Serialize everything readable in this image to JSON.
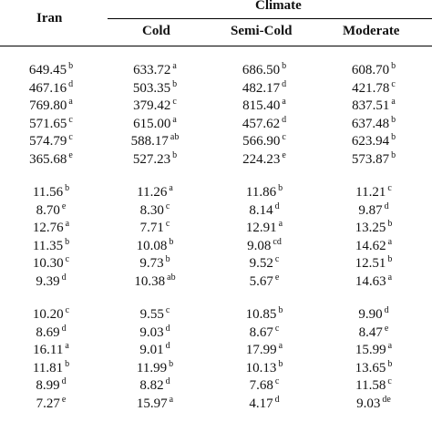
{
  "header": {
    "iran": "Iran",
    "climate": "Climate",
    "cold": "Cold",
    "semi_cold": "Semi-Cold",
    "moderate": "Moderate"
  },
  "groups": [
    {
      "rows": [
        [
          [
            "649.45",
            "b"
          ],
          [
            "633.72",
            "a"
          ],
          [
            "686.50",
            "b"
          ],
          [
            "608.70",
            "b"
          ]
        ],
        [
          [
            "467.16",
            "d"
          ],
          [
            "503.35",
            "b"
          ],
          [
            "482.17",
            "d"
          ],
          [
            "421.78",
            "c"
          ]
        ],
        [
          [
            "769.80",
            "a"
          ],
          [
            "379.42",
            "c"
          ],
          [
            "815.40",
            "a"
          ],
          [
            "837.51",
            "a"
          ]
        ],
        [
          [
            "571.65",
            "c"
          ],
          [
            "615.00",
            "a"
          ],
          [
            "457.62",
            "d"
          ],
          [
            "637.48",
            "b"
          ]
        ],
        [
          [
            "574.79",
            "c"
          ],
          [
            "588.17",
            "ab"
          ],
          [
            "566.90",
            "c"
          ],
          [
            "623.94",
            "b"
          ]
        ],
        [
          [
            "365.68",
            "e"
          ],
          [
            "527.23",
            "b"
          ],
          [
            "224.23",
            "e"
          ],
          [
            "573.87",
            "b"
          ]
        ]
      ]
    },
    {
      "rows": [
        [
          [
            "11.56",
            "b"
          ],
          [
            "11.26",
            "a"
          ],
          [
            "11.86",
            "b"
          ],
          [
            "11.21",
            "c"
          ]
        ],
        [
          [
            "8.70",
            "e"
          ],
          [
            "8.30",
            "c"
          ],
          [
            "8.14",
            "d"
          ],
          [
            "9.87",
            "d"
          ]
        ],
        [
          [
            "12.76",
            "a"
          ],
          [
            "7.71",
            "c"
          ],
          [
            "12.91",
            "a"
          ],
          [
            "13.25",
            "b"
          ]
        ],
        [
          [
            "11.35",
            "b"
          ],
          [
            "10.08",
            "b"
          ],
          [
            "9.08",
            "cd"
          ],
          [
            "14.62",
            "a"
          ]
        ],
        [
          [
            "10.30",
            "c"
          ],
          [
            "9.73",
            "b"
          ],
          [
            "9.52",
            "c"
          ],
          [
            "12.51",
            "b"
          ]
        ],
        [
          [
            "9.39",
            "d"
          ],
          [
            "10.38",
            "ab"
          ],
          [
            "5.67",
            "e"
          ],
          [
            "14.63",
            "a"
          ]
        ]
      ]
    },
    {
      "rows": [
        [
          [
            "10.20",
            "c"
          ],
          [
            "9.55",
            "c"
          ],
          [
            "10.85",
            "b"
          ],
          [
            "9.90",
            "d"
          ]
        ],
        [
          [
            "8.69",
            "d"
          ],
          [
            "9.03",
            "d"
          ],
          [
            "8.67",
            "c"
          ],
          [
            "8.47",
            "e"
          ]
        ],
        [
          [
            "16.11",
            "a"
          ],
          [
            "9.01",
            "d"
          ],
          [
            "17.99",
            "a"
          ],
          [
            "15.99",
            "a"
          ]
        ],
        [
          [
            "11.81",
            "b"
          ],
          [
            "11.99",
            "b"
          ],
          [
            "10.13",
            "b"
          ],
          [
            "13.65",
            "b"
          ]
        ],
        [
          [
            "8.99",
            "d"
          ],
          [
            "8.82",
            "d"
          ],
          [
            "7.68",
            "c"
          ],
          [
            "11.58",
            "c"
          ]
        ],
        [
          [
            "7.27",
            "e"
          ],
          [
            "15.97",
            "a"
          ],
          [
            "4.17",
            "d"
          ],
          [
            "9.03",
            "de"
          ]
        ]
      ]
    }
  ]
}
